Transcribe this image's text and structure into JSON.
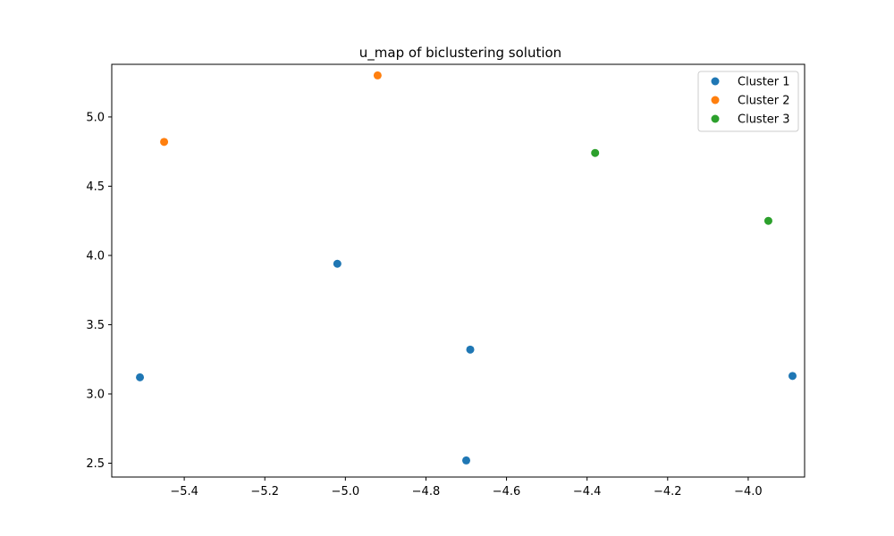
{
  "chart_data": {
    "type": "scatter",
    "title": "u_map of biclustering solution",
    "xlabel": "",
    "ylabel": "",
    "xlim": [
      -5.58,
      -3.86
    ],
    "ylim": [
      2.4,
      5.38
    ],
    "xticks": [
      -5.4,
      -5.2,
      -5.0,
      -4.8,
      -4.6,
      -4.4,
      -4.2,
      -4.0
    ],
    "xtick_labels": [
      "−5.4",
      "−5.2",
      "−5.0",
      "−4.8",
      "−4.6",
      "−4.4",
      "−4.2",
      "−4.0"
    ],
    "yticks": [
      2.5,
      3.0,
      3.5,
      4.0,
      4.5,
      5.0
    ],
    "ytick_labels": [
      "2.5",
      "3.0",
      "3.5",
      "4.0",
      "4.5",
      "5.0"
    ],
    "grid": false,
    "legend_position": "top-right",
    "series": [
      {
        "name": "Cluster 1",
        "color": "#1f77b4",
        "points": [
          {
            "x": -5.51,
            "y": 3.12
          },
          {
            "x": -5.02,
            "y": 3.94
          },
          {
            "x": -4.69,
            "y": 3.32
          },
          {
            "x": -4.7,
            "y": 2.52
          },
          {
            "x": -3.89,
            "y": 3.13
          }
        ]
      },
      {
        "name": "Cluster 2",
        "color": "#ff7f0e",
        "points": [
          {
            "x": -5.45,
            "y": 4.82
          },
          {
            "x": -4.92,
            "y": 5.3
          }
        ]
      },
      {
        "name": "Cluster 3",
        "color": "#2ca02c",
        "points": [
          {
            "x": -4.38,
            "y": 4.74
          },
          {
            "x": -3.95,
            "y": 4.25
          }
        ]
      }
    ]
  }
}
